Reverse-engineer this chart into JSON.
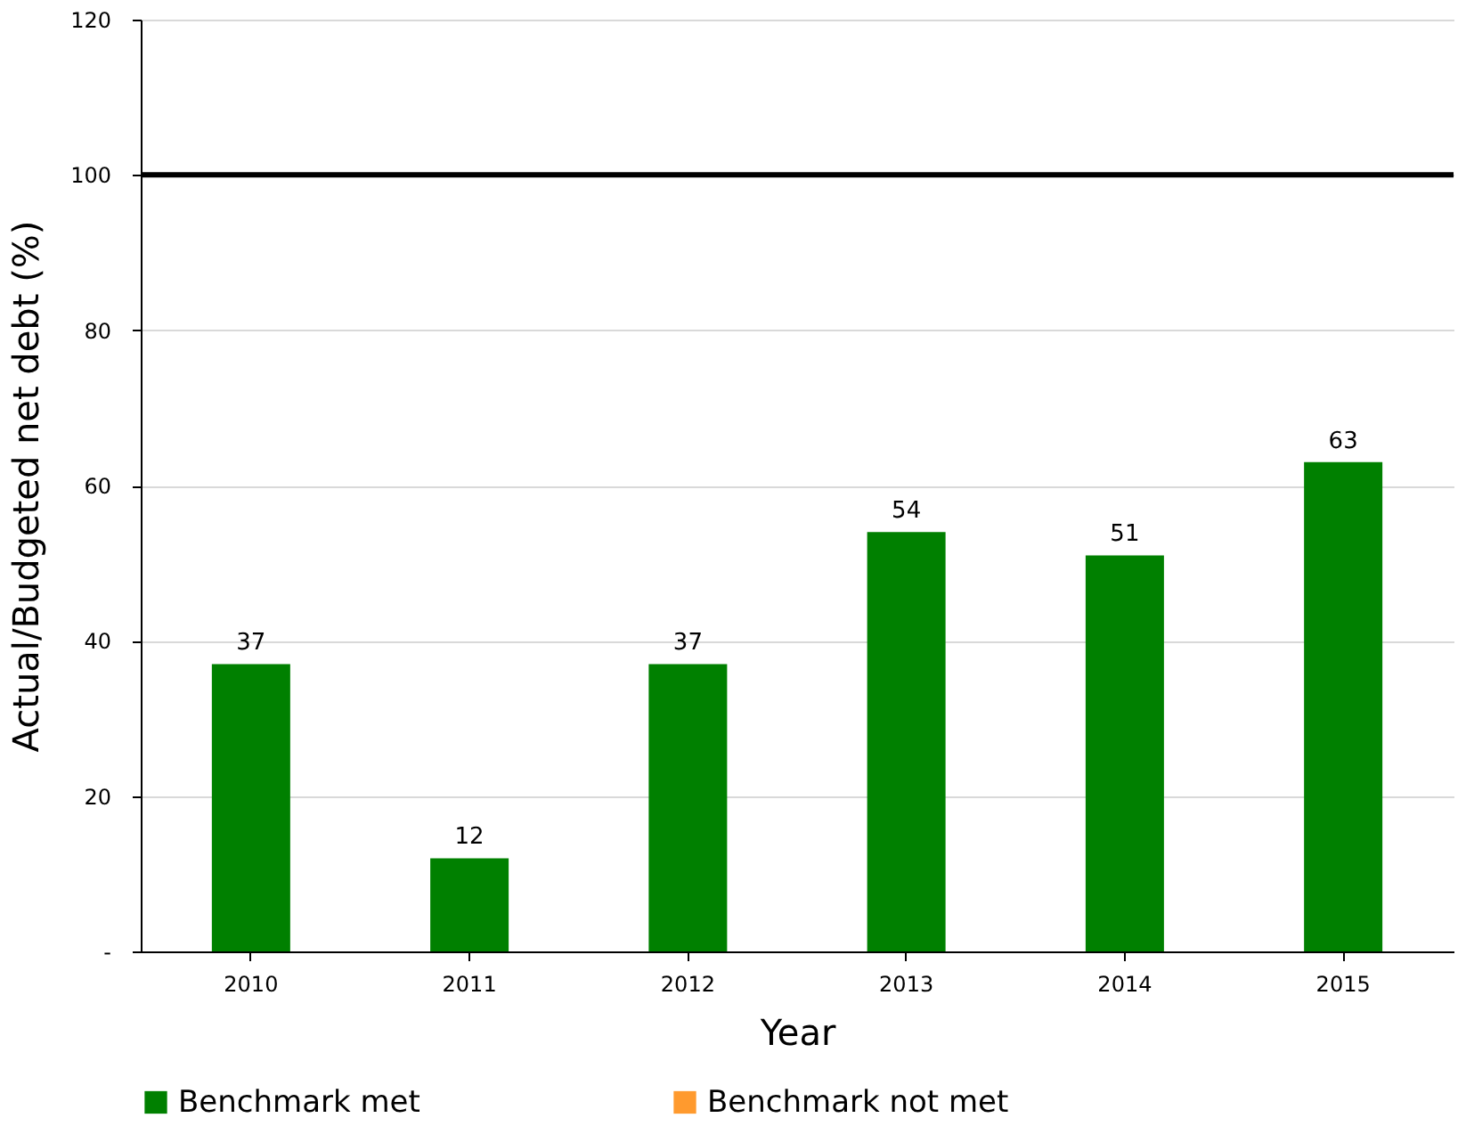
{
  "chart_data": {
    "type": "bar",
    "xlabel": "Year",
    "ylabel": "Actual/Budgeted net debt (%)",
    "categories": [
      "2010",
      "2011",
      "2012",
      "2013",
      "2014",
      "2015"
    ],
    "series": [
      {
        "name": "Benchmark met",
        "color": "#008000",
        "values": [
          37,
          12,
          37,
          54,
          51,
          63
        ]
      },
      {
        "name": "Benchmark not met",
        "color": "#ff9a2e",
        "values": [
          null,
          null,
          null,
          null,
          null,
          null
        ]
      }
    ],
    "data_labels": true,
    "ylim": [
      0,
      120
    ],
    "yticks": [
      {
        "value": 0,
        "label": "-"
      },
      20,
      40,
      60,
      80,
      100,
      120
    ],
    "ref_lines": [
      {
        "axis": "y",
        "value": 100,
        "color": "#000000",
        "line_style": "solid"
      }
    ],
    "grid": "y",
    "legend": "bottom"
  }
}
